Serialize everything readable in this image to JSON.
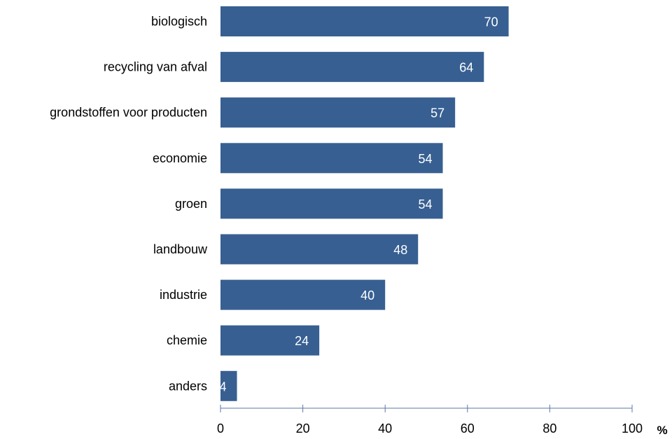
{
  "chart_data": {
    "type": "bar",
    "orientation": "horizontal",
    "categories": [
      "biologisch",
      "recycling van afval",
      "grondstoffen voor producten",
      "economie",
      "groen",
      "landbouw",
      "industrie",
      "chemie",
      "anders"
    ],
    "values": [
      70,
      64,
      57,
      54,
      54,
      48,
      40,
      24,
      4
    ],
    "xlim": [
      0,
      100
    ],
    "xticks": [
      0,
      20,
      40,
      60,
      80,
      100
    ],
    "x_unit_label": "%",
    "title": "",
    "xlabel": "",
    "ylabel": "",
    "grid": false,
    "legend": "none",
    "bar_color": "#375f92",
    "data_label_color": "#ffffff",
    "axis_color": "#5b79a8"
  }
}
